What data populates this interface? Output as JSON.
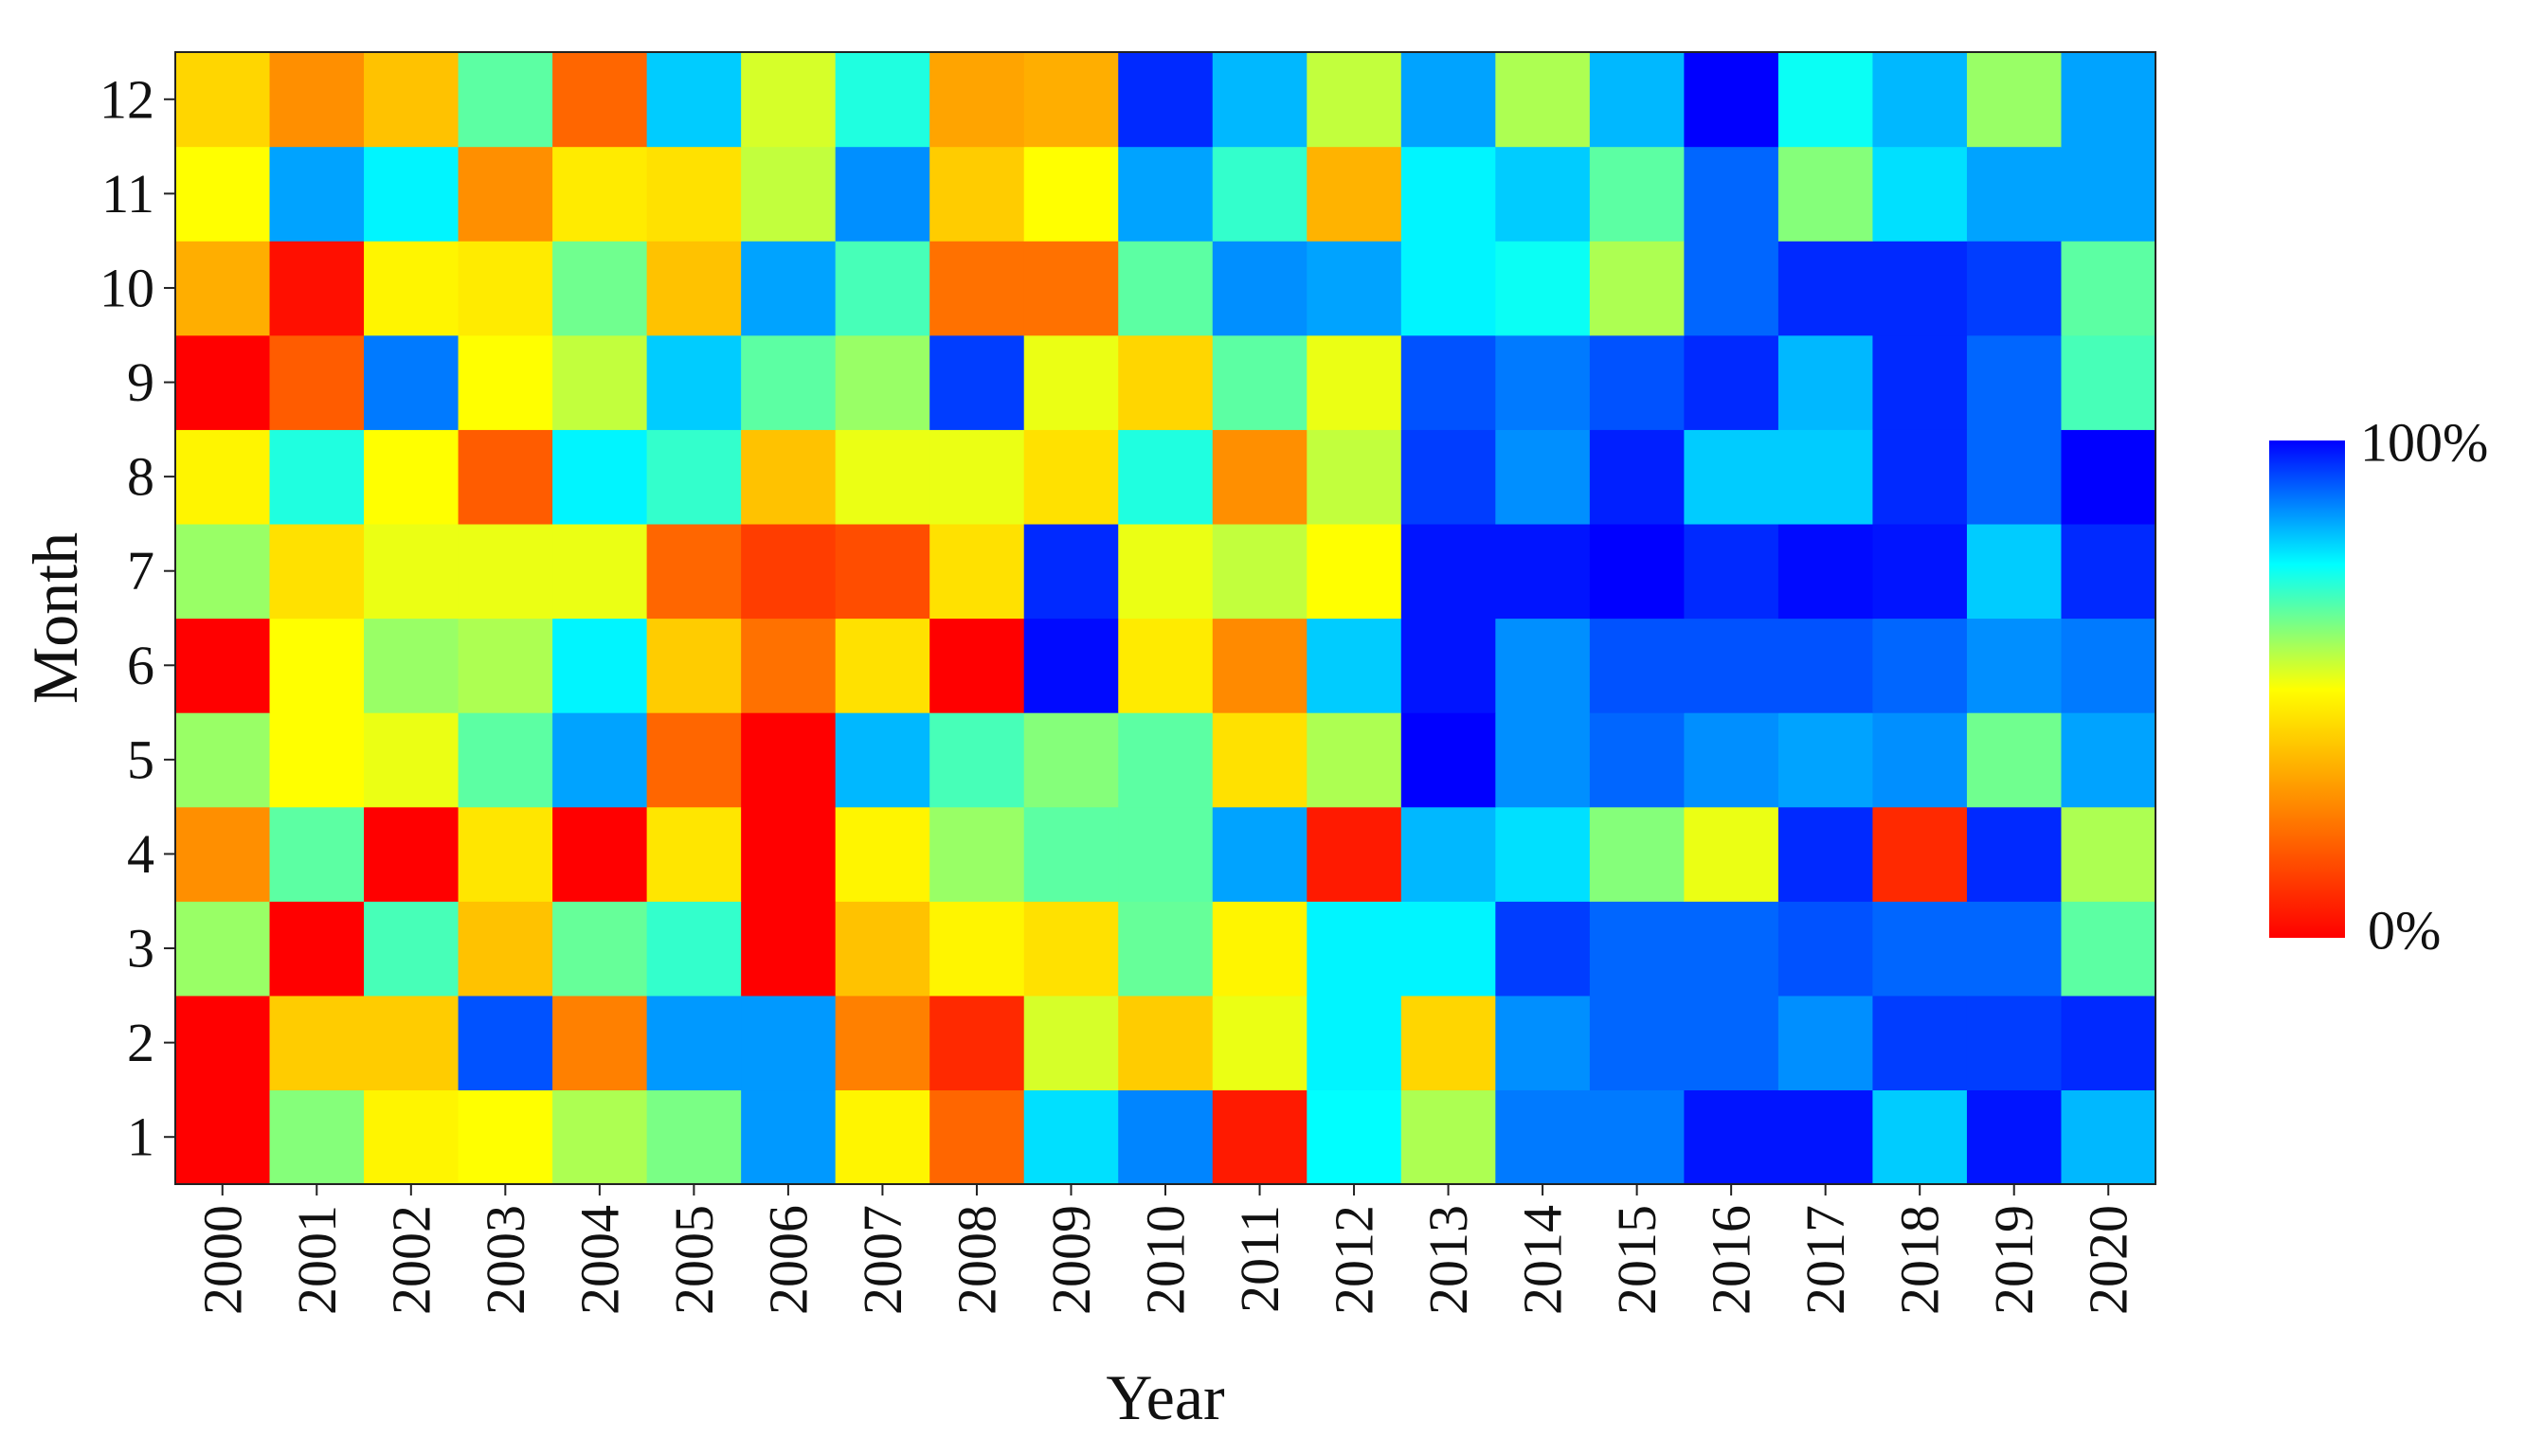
{
  "chart_data": {
    "type": "heatmap",
    "title": "",
    "xlabel": "Year",
    "ylabel": "Month",
    "x_categories": [
      "2000",
      "2001",
      "2002",
      "2003",
      "2004",
      "2005",
      "2006",
      "2007",
      "2008",
      "2009",
      "2010",
      "2011",
      "2012",
      "2013",
      "2014",
      "2015",
      "2016",
      "2017",
      "2018",
      "2019",
      "2020"
    ],
    "y_categories": [
      "1",
      "2",
      "3",
      "4",
      "5",
      "6",
      "7",
      "8",
      "9",
      "10",
      "11",
      "12"
    ],
    "value_range": [
      0,
      100
    ],
    "value_unit": "%",
    "colorscale": [
      "#ff0000",
      "#ff8000",
      "#ffff00",
      "#00ffff",
      "#0000ff"
    ],
    "legend": {
      "position": "right",
      "max_label": "100%",
      "min_label": "0%"
    },
    "grid": false,
    "values": [
      [
        0,
        62,
        48,
        50,
        58,
        63,
        85,
        48,
        20,
        78,
        87,
        5,
        75,
        58,
        88,
        88,
        98,
        98,
        80,
        98,
        82
      ],
      [
        0,
        40,
        40,
        92,
        25,
        85,
        85,
        25,
        8,
        54,
        40,
        52,
        76,
        42,
        86,
        90,
        90,
        86,
        94,
        94,
        96
      ],
      [
        60,
        0,
        68,
        38,
        65,
        70,
        0,
        38,
        48,
        44,
        65,
        48,
        76,
        76,
        94,
        90,
        90,
        92,
        90,
        90,
        66
      ],
      [
        28,
        66,
        0,
        45,
        0,
        45,
        0,
        48,
        60,
        66,
        66,
        84,
        5,
        82,
        78,
        62,
        52,
        96,
        8,
        96,
        58
      ],
      [
        60,
        50,
        52,
        66,
        84,
        20,
        0,
        82,
        68,
        62,
        66,
        44,
        58,
        100,
        86,
        90,
        86,
        84,
        86,
        64,
        84
      ],
      [
        0,
        50,
        60,
        58,
        76,
        40,
        22,
        44,
        0,
        99,
        46,
        27,
        80,
        98,
        86,
        92,
        92,
        92,
        90,
        86,
        88
      ],
      [
        60,
        44,
        52,
        52,
        52,
        20,
        12,
        15,
        44,
        96,
        52,
        56,
        50,
        98,
        98,
        100,
        96,
        99,
        98,
        80,
        96
      ],
      [
        48,
        72,
        50,
        18,
        76,
        70,
        38,
        52,
        52,
        44,
        72,
        28,
        56,
        94,
        86,
        97,
        80,
        80,
        96,
        90,
        100
      ],
      [
        0,
        18,
        88,
        50,
        56,
        80,
        66,
        60,
        94,
        52,
        42,
        66,
        52,
        92,
        88,
        92,
        96,
        82,
        96,
        90,
        68
      ],
      [
        34,
        3,
        48,
        46,
        64,
        38,
        84,
        68,
        22,
        22,
        66,
        86,
        84,
        76,
        74,
        58,
        90,
        96,
        96,
        94,
        66
      ],
      [
        50,
        84,
        76,
        28,
        46,
        44,
        56,
        86,
        40,
        50,
        84,
        70,
        35,
        76,
        80,
        66,
        90,
        62,
        78,
        84,
        84
      ],
      [
        42,
        28,
        38,
        66,
        20,
        80,
        54,
        72,
        32,
        34,
        96,
        82,
        56,
        84,
        58,
        82,
        100,
        74,
        82,
        60,
        84
      ]
    ]
  }
}
